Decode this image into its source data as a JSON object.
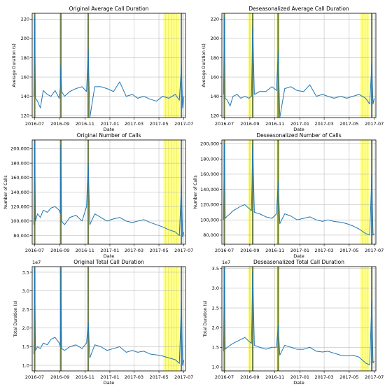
{
  "figure": {
    "background": "#ffffff",
    "line_color": "#1f77b4",
    "highlight_color": "#ffff66",
    "marker_color": "#556b2f"
  },
  "x_axis": {
    "label": "Date",
    "tick_labels": [
      "2016-07",
      "2016-09",
      "2016-11",
      "2017-01",
      "2017-03",
      "2017-05",
      "2017-07"
    ],
    "range": [
      "2016-06-25",
      "2017-07-05"
    ]
  },
  "chart_data": [
    {
      "type": "line",
      "title": "Original Average Call Duration",
      "xlabel": "Date",
      "ylabel": "Average Duration (s)",
      "ylim": [
        118,
        226
      ],
      "yticks": [
        120,
        140,
        160,
        180,
        200,
        220
      ],
      "ytick_labels": [
        "120",
        "140",
        "160",
        "180",
        "200",
        "220"
      ],
      "offset_text": "",
      "grid": true,
      "highlight_bands": [
        [
          "2017-05-12",
          "2017-06-20"
        ]
      ],
      "markers": [
        "2016-07-01",
        "2016-09-03",
        "2016-11-09",
        "2017-06-25"
      ],
      "series": [
        {
          "x": [
            "2016-06-29",
            "2016-07-01",
            "2016-07-03",
            "2016-07-08",
            "2016-07-15",
            "2016-07-22",
            "2016-08-01",
            "2016-08-10",
            "2016-08-20",
            "2016-08-30",
            "2016-09-02",
            "2016-09-03",
            "2016-09-05",
            "2016-09-12",
            "2016-09-25",
            "2016-10-10",
            "2016-10-25",
            "2016-11-05",
            "2016-11-09",
            "2016-11-13",
            "2016-11-25",
            "2016-12-10",
            "2016-12-25",
            "2017-01-10",
            "2017-01-25",
            "2017-02-10",
            "2017-02-25",
            "2017-03-10",
            "2017-03-25",
            "2017-04-10",
            "2017-04-25",
            "2017-05-10",
            "2017-05-25",
            "2017-06-10",
            "2017-06-20",
            "2017-06-25",
            "2017-06-28",
            "2017-07-01"
          ],
          "values": [
            140,
            222,
            138,
            135,
            128,
            146,
            142,
            140,
            146,
            138,
            150,
            172,
            145,
            140,
            145,
            148,
            150,
            145,
            188,
            118,
            150,
            150,
            148,
            145,
            155,
            140,
            142,
            138,
            140,
            137,
            135,
            140,
            138,
            142,
            136,
            172,
            128,
            140
          ]
        }
      ]
    },
    {
      "type": "line",
      "title": "Deseasonalized Average Call Duration",
      "xlabel": "Date",
      "ylabel": "Average Duration (s)",
      "ylim": [
        118,
        226
      ],
      "yticks": [
        120,
        140,
        160,
        180,
        200,
        220
      ],
      "ytick_labels": [
        "120",
        "140",
        "160",
        "180",
        "200",
        "220"
      ],
      "offset_text": "",
      "grid": true,
      "highlight_bands": [
        [
          "2016-08-28",
          "2016-09-04"
        ],
        [
          "2016-11-05",
          "2016-11-12"
        ],
        [
          "2017-05-28",
          "2017-06-18"
        ]
      ],
      "markers": [
        "2016-07-01",
        "2016-09-08",
        "2016-11-09",
        "2017-06-25"
      ],
      "series": [
        {
          "x": [
            "2016-06-29",
            "2016-07-01",
            "2016-07-03",
            "2016-07-08",
            "2016-07-15",
            "2016-07-22",
            "2016-08-01",
            "2016-08-10",
            "2016-08-20",
            "2016-08-30",
            "2016-09-05",
            "2016-09-08",
            "2016-09-12",
            "2016-09-25",
            "2016-10-10",
            "2016-10-25",
            "2016-11-05",
            "2016-11-09",
            "2016-11-13",
            "2016-11-25",
            "2016-12-10",
            "2016-12-25",
            "2017-01-10",
            "2017-01-25",
            "2017-02-10",
            "2017-02-25",
            "2017-03-10",
            "2017-03-25",
            "2017-04-10",
            "2017-04-25",
            "2017-05-10",
            "2017-05-25",
            "2017-06-10",
            "2017-06-20",
            "2017-06-25",
            "2017-06-28",
            "2017-07-01"
          ],
          "values": [
            142,
            222,
            138,
            136,
            130,
            140,
            142,
            138,
            140,
            138,
            140,
            212,
            142,
            145,
            145,
            150,
            146,
            186,
            118,
            148,
            150,
            146,
            145,
            152,
            140,
            142,
            140,
            138,
            140,
            138,
            140,
            142,
            138,
            132,
            174,
            132,
            138
          ]
        }
      ]
    },
    {
      "type": "line",
      "title": "Original Number of Calls",
      "xlabel": "Date",
      "ylabel": "Number of Calls",
      "ylim": [
        68000,
        212000
      ],
      "yticks": [
        80000,
        100000,
        120000,
        140000,
        160000,
        180000,
        200000
      ],
      "ytick_labels": [
        "80,000",
        "100,000",
        "120,000",
        "140,000",
        "160,000",
        "180,000",
        "200,000"
      ],
      "offset_text": "",
      "grid": true,
      "highlight_bands": [
        [
          "2017-05-12",
          "2017-06-20"
        ]
      ],
      "markers": [
        "2016-07-01",
        "2016-09-03",
        "2016-11-09",
        "2017-06-25"
      ],
      "series": [
        {
          "x": [
            "2016-06-29",
            "2016-07-01",
            "2016-07-03",
            "2016-07-08",
            "2016-07-15",
            "2016-07-22",
            "2016-08-01",
            "2016-08-10",
            "2016-08-20",
            "2016-08-30",
            "2016-09-02",
            "2016-09-03",
            "2016-09-05",
            "2016-09-12",
            "2016-09-25",
            "2016-10-10",
            "2016-10-25",
            "2016-11-05",
            "2016-11-09",
            "2016-11-13",
            "2016-11-25",
            "2016-12-10",
            "2016-12-25",
            "2017-01-10",
            "2017-01-25",
            "2017-02-10",
            "2017-02-25",
            "2017-03-10",
            "2017-03-25",
            "2017-04-10",
            "2017-04-25",
            "2017-05-10",
            "2017-05-25",
            "2017-06-10",
            "2017-06-20",
            "2017-06-25",
            "2017-06-28",
            "2017-07-01"
          ],
          "values": [
            95000,
            210000,
            100000,
            110000,
            105000,
            115000,
            112000,
            118000,
            120000,
            115000,
            110000,
            205000,
            100000,
            95000,
            105000,
            108000,
            100000,
            120000,
            180000,
            95000,
            110000,
            105000,
            100000,
            103000,
            105000,
            100000,
            98000,
            100000,
            102000,
            98000,
            95000,
            92000,
            88000,
            85000,
            80000,
            150000,
            78000,
            85000
          ]
        }
      ]
    },
    {
      "type": "line",
      "title": "Deseasonalized Number of Calls",
      "xlabel": "Date",
      "ylabel": "Number of Calls",
      "ylim": [
        68000,
        205000
      ],
      "yticks": [
        80000,
        100000,
        120000,
        140000,
        160000,
        180000,
        200000
      ],
      "ytick_labels": [
        "80,000",
        "100,000",
        "120,000",
        "140,000",
        "160,000",
        "180,000",
        "200,000"
      ],
      "offset_text": "",
      "grid": true,
      "highlight_bands": [
        [
          "2016-08-28",
          "2016-09-04"
        ],
        [
          "2016-11-05",
          "2016-11-12"
        ],
        [
          "2017-05-28",
          "2017-06-18"
        ]
      ],
      "markers": [
        "2016-07-01",
        "2016-09-08",
        "2016-11-09",
        "2017-06-25"
      ],
      "series": [
        {
          "x": [
            "2016-06-29",
            "2016-07-01",
            "2016-07-03",
            "2016-07-08",
            "2016-07-15",
            "2016-07-22",
            "2016-08-01",
            "2016-08-10",
            "2016-08-20",
            "2016-08-30",
            "2016-09-05",
            "2016-09-08",
            "2016-09-12",
            "2016-09-25",
            "2016-10-10",
            "2016-10-25",
            "2016-11-05",
            "2016-11-09",
            "2016-11-13",
            "2016-11-25",
            "2016-12-10",
            "2016-12-25",
            "2017-01-10",
            "2017-01-25",
            "2017-02-10",
            "2017-02-25",
            "2017-03-10",
            "2017-03-25",
            "2017-04-10",
            "2017-04-25",
            "2017-05-10",
            "2017-05-25",
            "2017-06-10",
            "2017-06-20",
            "2017-06-25",
            "2017-06-28",
            "2017-07-01"
          ],
          "values": [
            100000,
            200000,
            102000,
            105000,
            108000,
            112000,
            115000,
            118000,
            120000,
            115000,
            112000,
            198000,
            110000,
            108000,
            104000,
            102000,
            108000,
            150000,
            95000,
            108000,
            105000,
            100000,
            102000,
            104000,
            100000,
            98000,
            100000,
            98000,
            97000,
            95000,
            92000,
            88000,
            82000,
            80000,
            160000,
            80000,
            82000
          ]
        }
      ]
    },
    {
      "type": "line",
      "title": "Original Total Call Duration",
      "xlabel": "Date",
      "ylabel": "Total Duration (s)",
      "ylim": [
        0.85,
        3.65
      ],
      "yticks": [
        1.0,
        1.5,
        2.0,
        2.5,
        3.0,
        3.5
      ],
      "ytick_labels": [
        "1.0",
        "1.5",
        "2.0",
        "2.5",
        "3.0",
        "3.5"
      ],
      "offset_text": "1e7",
      "grid": true,
      "highlight_bands": [
        [
          "2017-05-12",
          "2017-06-20"
        ]
      ],
      "markers": [
        "2016-07-01",
        "2016-09-03",
        "2016-11-09",
        "2017-06-25"
      ],
      "series": [
        {
          "x": [
            "2016-06-29",
            "2016-07-01",
            "2016-07-03",
            "2016-07-08",
            "2016-07-15",
            "2016-07-22",
            "2016-08-01",
            "2016-08-10",
            "2016-08-20",
            "2016-08-30",
            "2016-09-02",
            "2016-09-03",
            "2016-09-05",
            "2016-09-12",
            "2016-09-25",
            "2016-10-10",
            "2016-10-25",
            "2016-11-05",
            "2016-11-09",
            "2016-11-13",
            "2016-11-25",
            "2016-12-10",
            "2016-12-25",
            "2017-01-10",
            "2017-01-25",
            "2017-02-10",
            "2017-02-25",
            "2017-03-10",
            "2017-03-25",
            "2017-04-10",
            "2017-04-25",
            "2017-05-10",
            "2017-05-25",
            "2017-06-10",
            "2017-06-20",
            "2017-06-25",
            "2017-06-28",
            "2017-07-01"
          ],
          "values": [
            1.3,
            3.6,
            1.4,
            1.5,
            1.45,
            1.6,
            1.55,
            1.7,
            1.75,
            1.6,
            1.5,
            3.6,
            1.45,
            1.4,
            1.5,
            1.55,
            1.45,
            1.6,
            2.15,
            1.2,
            1.55,
            1.5,
            1.4,
            1.45,
            1.5,
            1.35,
            1.4,
            1.35,
            1.38,
            1.3,
            1.28,
            1.25,
            1.2,
            1.15,
            1.05,
            2.7,
            1.0,
            1.15
          ]
        }
      ]
    },
    {
      "type": "line",
      "title": "Deseasonalized Total Call Duration",
      "xlabel": "Date",
      "ylabel": "Total Duration (s)",
      "ylim": [
        0.9,
        3.55
      ],
      "yticks": [
        1.0,
        1.5,
        2.0,
        2.5,
        3.0,
        3.5
      ],
      "ytick_labels": [
        "1.0",
        "1.5",
        "2.0",
        "2.5",
        "3.0",
        "3.5"
      ],
      "offset_text": "1e7",
      "grid": true,
      "highlight_bands": [
        [
          "2016-08-28",
          "2016-09-04"
        ],
        [
          "2016-11-05",
          "2016-11-12"
        ],
        [
          "2017-05-28",
          "2017-06-18"
        ]
      ],
      "markers": [
        "2016-07-01",
        "2016-09-08",
        "2016-11-09",
        "2017-06-25"
      ],
      "series": [
        {
          "x": [
            "2016-06-29",
            "2016-07-01",
            "2016-07-03",
            "2016-07-08",
            "2016-07-15",
            "2016-07-22",
            "2016-08-01",
            "2016-08-10",
            "2016-08-20",
            "2016-08-30",
            "2016-09-05",
            "2016-09-08",
            "2016-09-12",
            "2016-09-25",
            "2016-10-10",
            "2016-10-25",
            "2016-11-05",
            "2016-11-09",
            "2016-11-13",
            "2016-11-25",
            "2016-12-10",
            "2016-12-25",
            "2017-01-10",
            "2017-01-25",
            "2017-02-10",
            "2017-02-25",
            "2017-03-10",
            "2017-03-25",
            "2017-04-10",
            "2017-04-25",
            "2017-05-10",
            "2017-05-25",
            "2017-06-10",
            "2017-06-20",
            "2017-06-25",
            "2017-06-28",
            "2017-07-01"
          ],
          "values": [
            1.4,
            3.5,
            1.45,
            1.5,
            1.55,
            1.6,
            1.65,
            1.7,
            1.75,
            1.65,
            1.6,
            3.4,
            1.55,
            1.5,
            1.45,
            1.5,
            1.5,
            2.05,
            1.3,
            1.55,
            1.5,
            1.45,
            1.45,
            1.5,
            1.4,
            1.38,
            1.4,
            1.35,
            1.3,
            1.28,
            1.3,
            1.25,
            1.1,
            1.05,
            2.7,
            1.1,
            1.15
          ]
        }
      ]
    }
  ]
}
